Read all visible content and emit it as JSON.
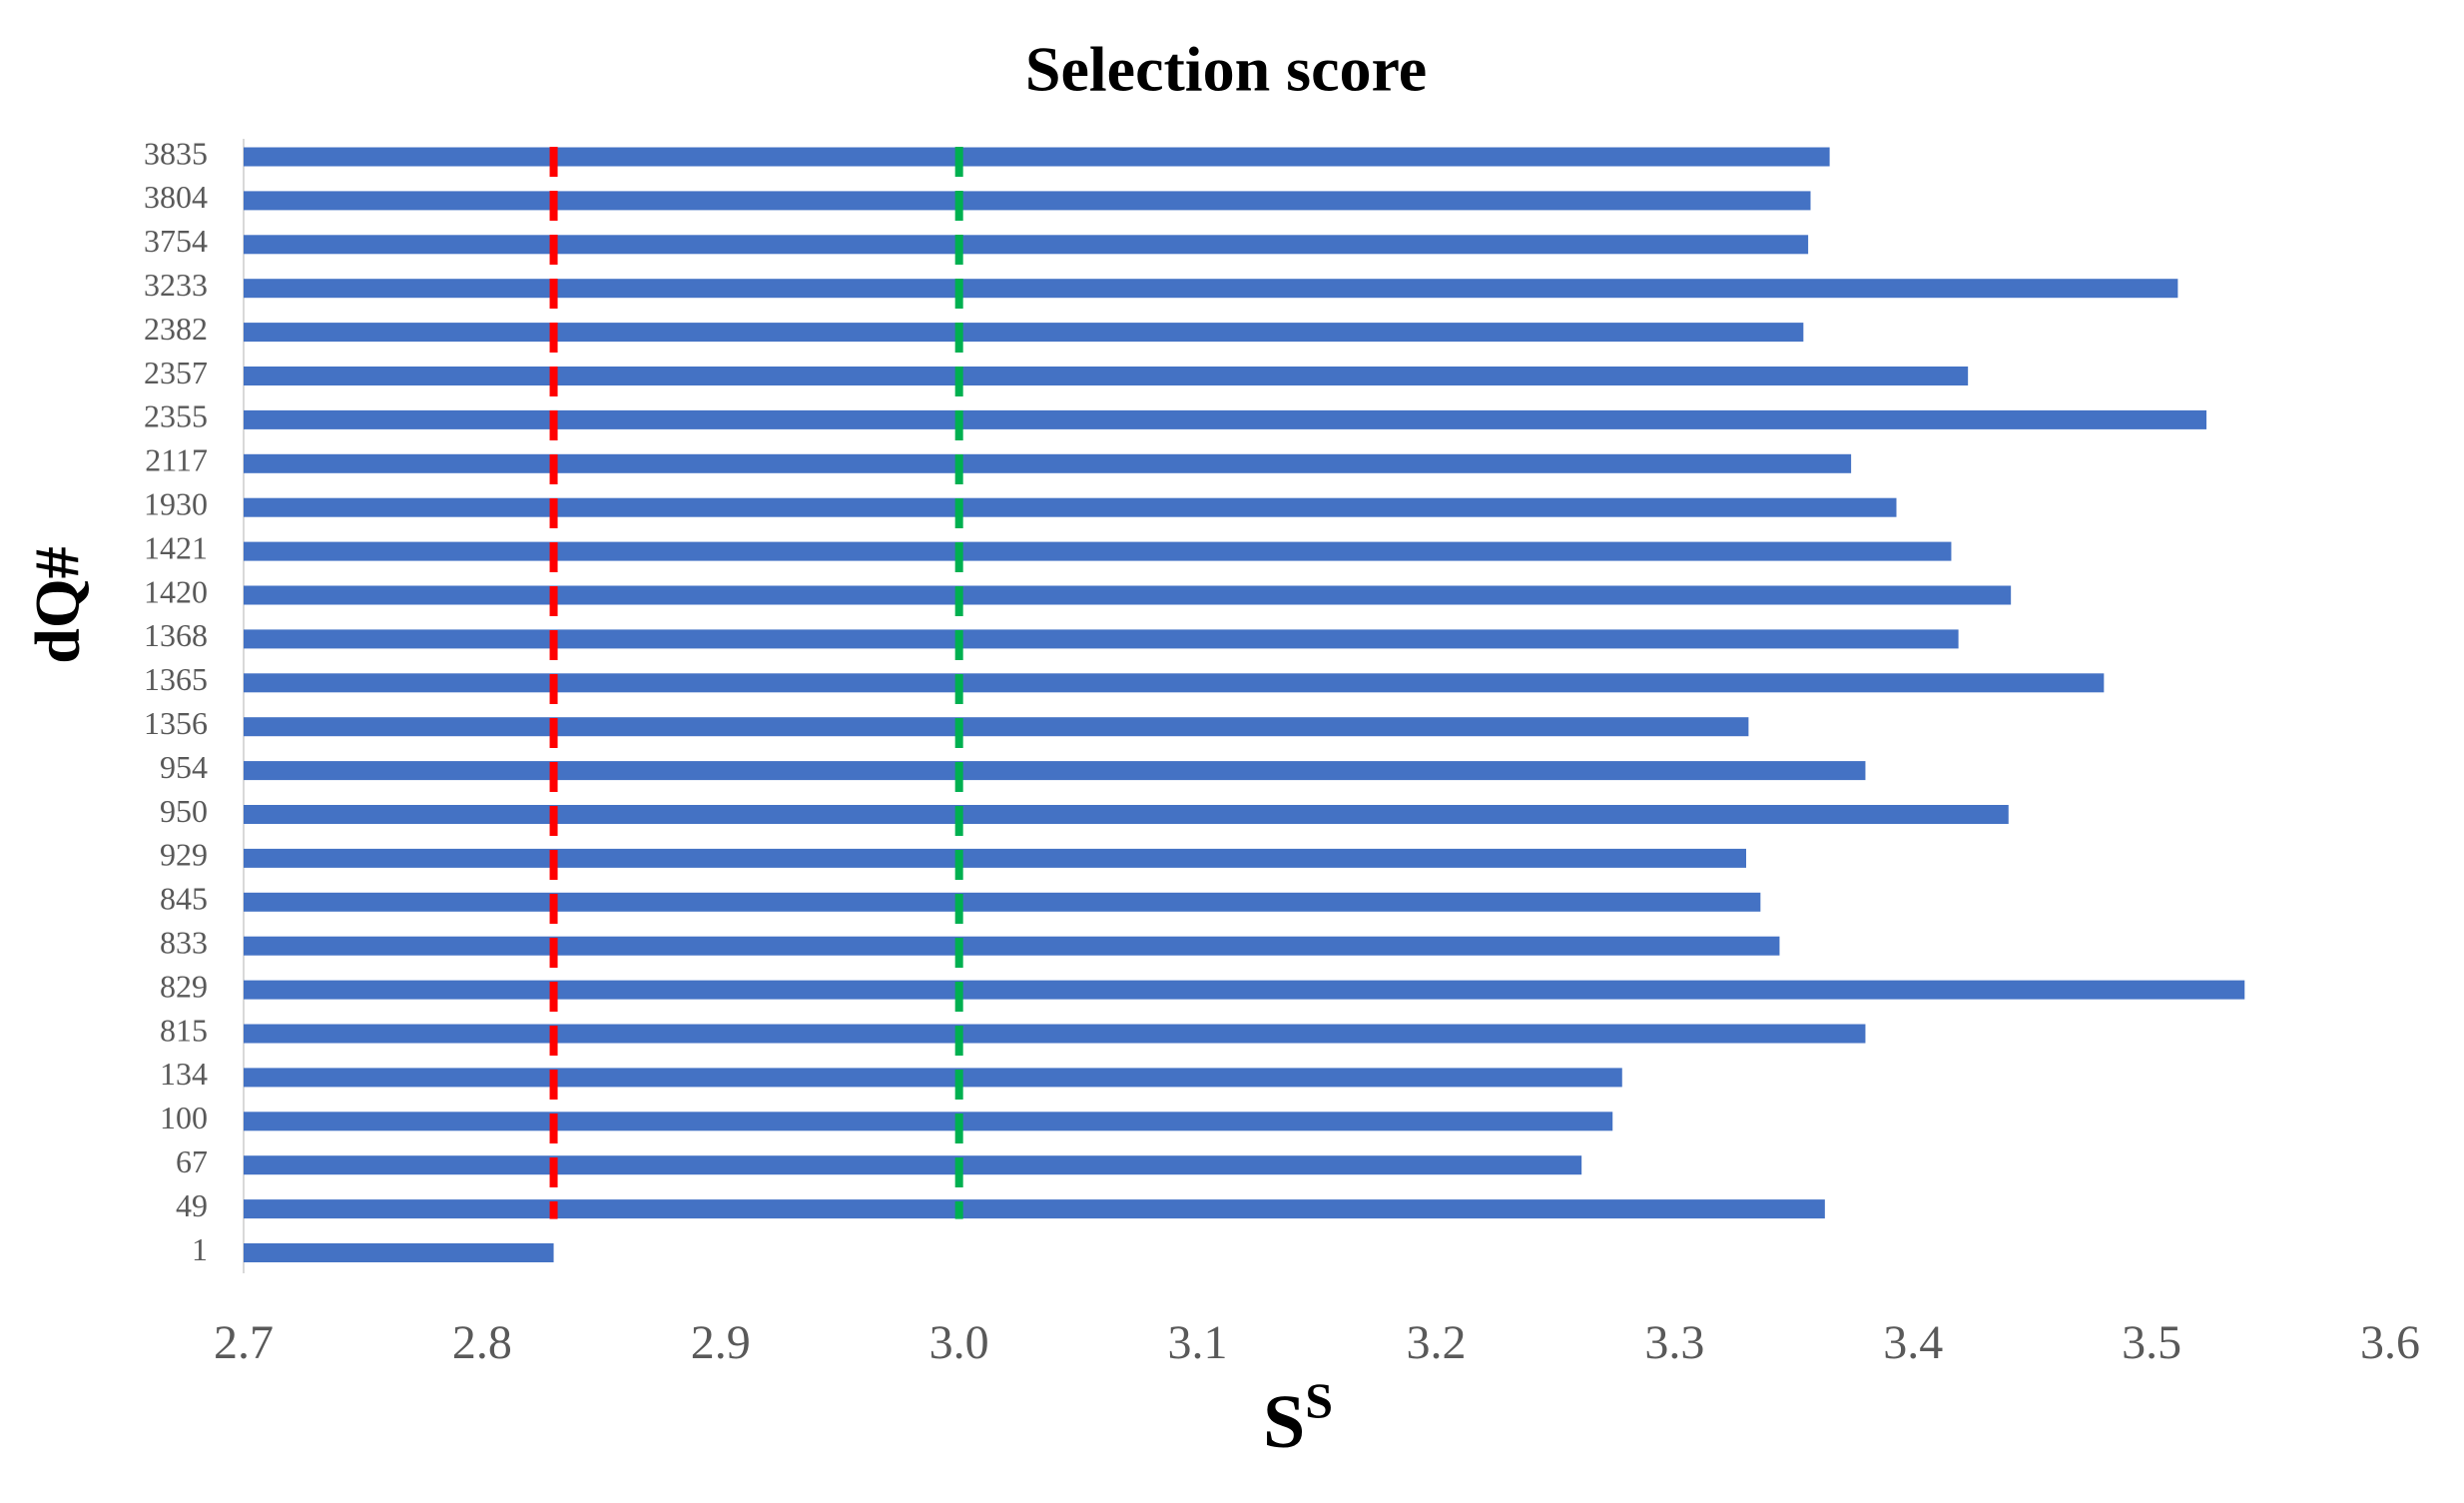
{
  "chart_data": {
    "type": "bar",
    "orientation": "horizontal",
    "title": "Selection score",
    "xlabel": "S",
    "xlabel_superscript": "S",
    "ylabel": "dQ#",
    "categories": [
      "3835",
      "3804",
      "3754",
      "3233",
      "2382",
      "2357",
      "2355",
      "2117",
      "1930",
      "1421",
      "1420",
      "1368",
      "1365",
      "1356",
      "954",
      "950",
      "929",
      "845",
      "833",
      "829",
      "815",
      "134",
      "100",
      "67",
      "49",
      "1"
    ],
    "values": [
      3.365,
      3.357,
      3.356,
      3.511,
      3.354,
      3.423,
      3.523,
      3.374,
      3.393,
      3.416,
      3.441,
      3.419,
      3.48,
      3.331,
      3.38,
      3.44,
      3.33,
      3.336,
      3.344,
      3.539,
      3.38,
      3.278,
      3.274,
      3.261,
      3.363,
      2.83
    ],
    "color": "#4472c4",
    "xlim": [
      2.7,
      3.6
    ],
    "xticks": [
      2.7,
      2.8,
      2.9,
      {
        "value": 3.0,
        "label": "3.0"
      },
      3.1,
      3.2,
      3.3,
      3.4,
      3.5,
      3.6
    ],
    "reference_lines": [
      {
        "value": 2.83,
        "color": "#ff0000"
      },
      {
        "value": 3.0,
        "color": "#00b050"
      }
    ]
  }
}
